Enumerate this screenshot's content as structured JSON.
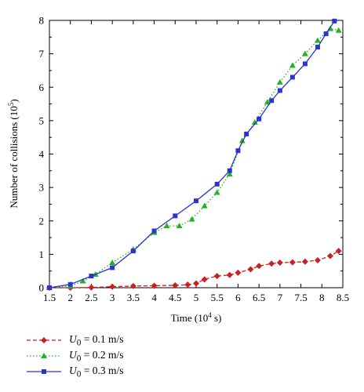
{
  "chart_data": {
    "type": "line",
    "xlabel": "Time (10",
    "xlabel_sup": "4",
    "xlabel_tail": " s)",
    "ylabel": "Number of collisions (10",
    "ylabel_sup": "5",
    "ylabel_tail": ")",
    "xlim": [
      1.5,
      8.5
    ],
    "ylim": [
      0,
      8
    ],
    "xticks": [
      "1.5",
      "2",
      "2.5",
      "3",
      "3.5",
      "4",
      "4.5",
      "5",
      "5.5",
      "6",
      "6.5",
      "7",
      "7.5",
      "8",
      "8.5"
    ],
    "yticks": [
      "0",
      "1",
      "2",
      "3",
      "4",
      "5",
      "6",
      "7",
      "8"
    ],
    "grid": false,
    "legend_position": "bottom-left, outside plot",
    "series": [
      {
        "name": "U0 = 0.1 m/s",
        "label_var": "U",
        "label_sub": "0",
        "label_rest": " = 0.1 m/s",
        "color": "#cc1f1f",
        "marker": "diamond",
        "dash": "dashed",
        "x": [
          1.5,
          2.0,
          2.5,
          3.0,
          3.5,
          4.0,
          4.5,
          4.8,
          5.0,
          5.2,
          5.5,
          5.8,
          6.0,
          6.3,
          6.5,
          6.8,
          7.0,
          7.3,
          7.6,
          7.9,
          8.2,
          8.4
        ],
        "y": [
          0,
          0,
          0.01,
          0.03,
          0.05,
          0.06,
          0.07,
          0.09,
          0.13,
          0.25,
          0.35,
          0.38,
          0.45,
          0.55,
          0.65,
          0.72,
          0.75,
          0.76,
          0.78,
          0.82,
          0.95,
          1.1
        ]
      },
      {
        "name": "U0 = 0.2 m/s",
        "label_var": "U",
        "label_sub": "0",
        "label_rest": " = 0.2 m/s",
        "color": "#22b222",
        "marker": "triangle",
        "dash": "dotted",
        "x": [
          1.5,
          2.0,
          2.3,
          2.6,
          3.0,
          3.5,
          4.0,
          4.3,
          4.6,
          4.9,
          5.2,
          5.5,
          5.8,
          6.1,
          6.4,
          6.7,
          7.0,
          7.3,
          7.6,
          7.9,
          8.2,
          8.4
        ],
        "y": [
          0,
          0.05,
          0.2,
          0.4,
          0.75,
          1.15,
          1.65,
          1.85,
          1.85,
          2.05,
          2.45,
          2.85,
          3.4,
          4.4,
          4.95,
          5.55,
          6.15,
          6.65,
          7.0,
          7.4,
          7.75,
          7.7
        ]
      },
      {
        "name": "U0 = 0.3 m/s",
        "label_var": "U",
        "label_sub": "0",
        "label_rest": " = 0.3 m/s",
        "color": "#2a35cc",
        "marker": "square",
        "dash": "solid",
        "x": [
          1.5,
          2.0,
          2.5,
          3.0,
          3.5,
          4.0,
          4.5,
          5.0,
          5.5,
          5.8,
          6.0,
          6.2,
          6.5,
          6.8,
          7.0,
          7.3,
          7.6,
          7.9,
          8.1,
          8.3
        ],
        "y": [
          0,
          0.1,
          0.35,
          0.6,
          1.1,
          1.7,
          2.15,
          2.6,
          3.1,
          3.5,
          4.1,
          4.6,
          5.05,
          5.6,
          5.9,
          6.3,
          6.7,
          7.2,
          7.6,
          7.98
        ]
      }
    ]
  }
}
